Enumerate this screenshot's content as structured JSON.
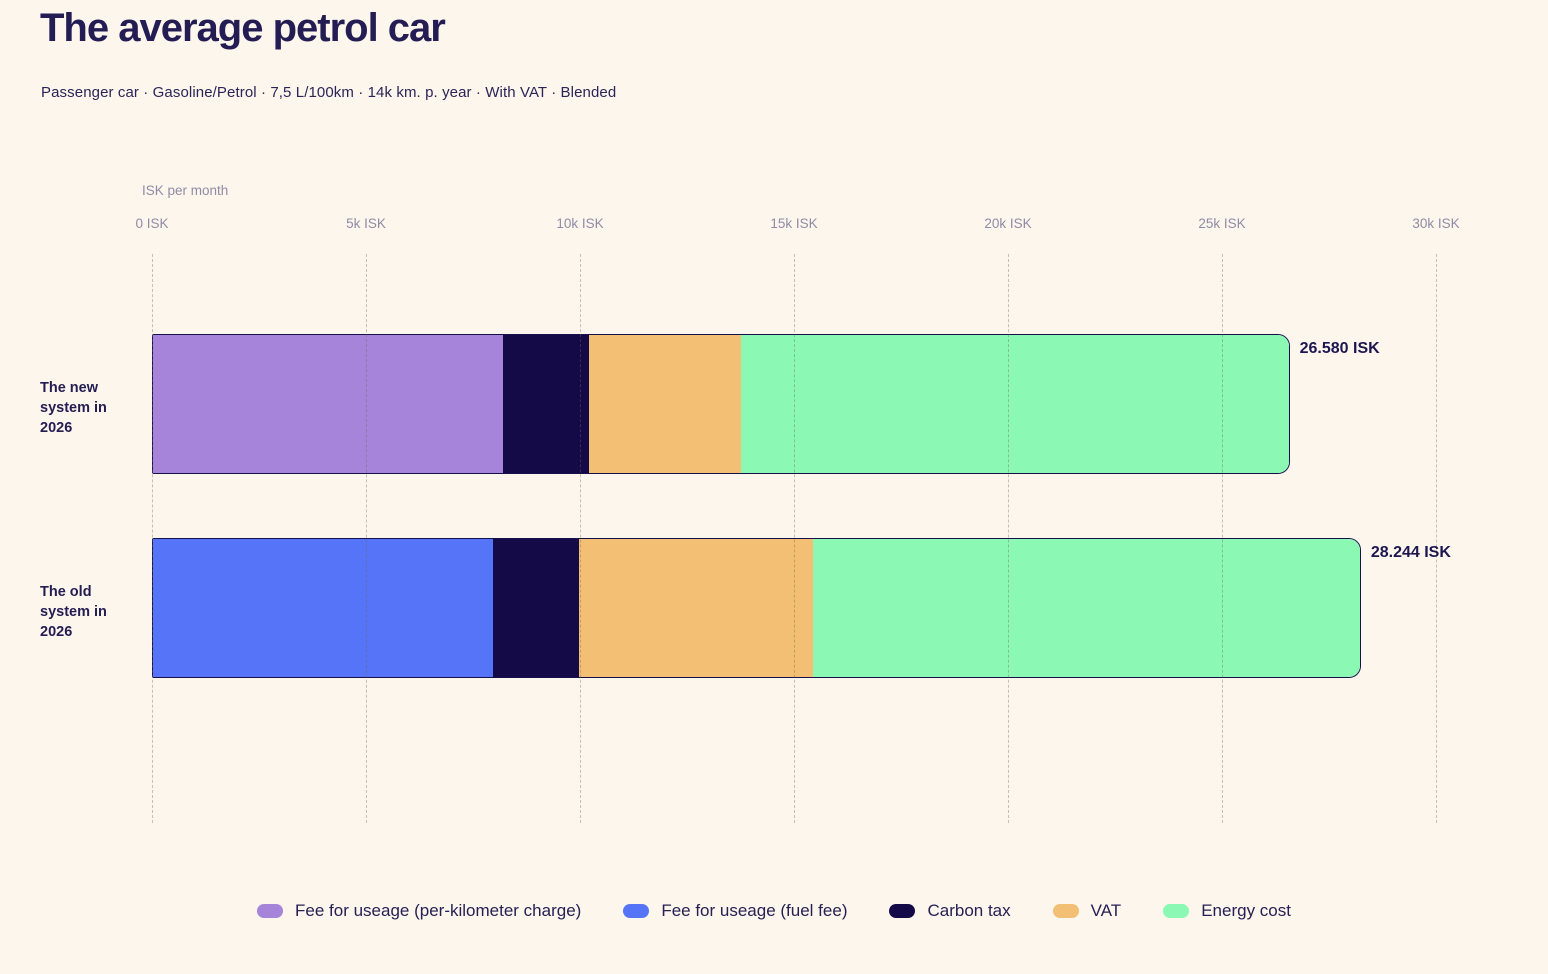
{
  "header": {
    "title": "The average petrol car",
    "subtitle_items": [
      "Passenger car",
      "Gasoline/Petrol",
      "7,5 L/100km",
      "14k km. p. year",
      "With VAT",
      "Blended"
    ],
    "separator": "·"
  },
  "chart_data": {
    "type": "bar",
    "orientation": "horizontal",
    "stacked": true,
    "axis_title": "ISK per month",
    "xlim": [
      0,
      30000
    ],
    "grid": true,
    "x_ticks": [
      {
        "value": 0,
        "label": "0 ISK"
      },
      {
        "value": 5000,
        "label": "5k ISK"
      },
      {
        "value": 10000,
        "label": "10k ISK"
      },
      {
        "value": 15000,
        "label": "15k ISK"
      },
      {
        "value": 20000,
        "label": "20k ISK"
      },
      {
        "value": 25000,
        "label": "25k ISK"
      },
      {
        "value": 30000,
        "label": "30k ISK"
      }
    ],
    "categories": [
      "The new system in 2026",
      "The old system in 2026"
    ],
    "series": [
      {
        "name": "Fee for useage (per-kilometer charge)",
        "color": "#A684DA",
        "values": [
          8167,
          0
        ]
      },
      {
        "name": "Fee for useage (fuel fee)",
        "color": "#5574F7",
        "values": [
          0,
          7933
        ]
      },
      {
        "name": "Carbon tax",
        "color": "#140A47",
        "values": [
          2013,
          2013
        ]
      },
      {
        "name": "VAT",
        "color": "#F2BF74",
        "values": [
          3570,
          5468
        ]
      },
      {
        "name": "Energy cost",
        "color": "#8BF8B4",
        "values": [
          12830,
          12830
        ]
      }
    ],
    "total_values": [
      26580,
      28244
    ],
    "total_labels": [
      "26.580 ISK",
      "28.244 ISK"
    ],
    "legend_position": "bottom"
  },
  "colors": {
    "background": "#FDF6EC",
    "title_text": "#231D54",
    "axis_text": "#8F8BA6",
    "bar_border": "#16104A"
  }
}
